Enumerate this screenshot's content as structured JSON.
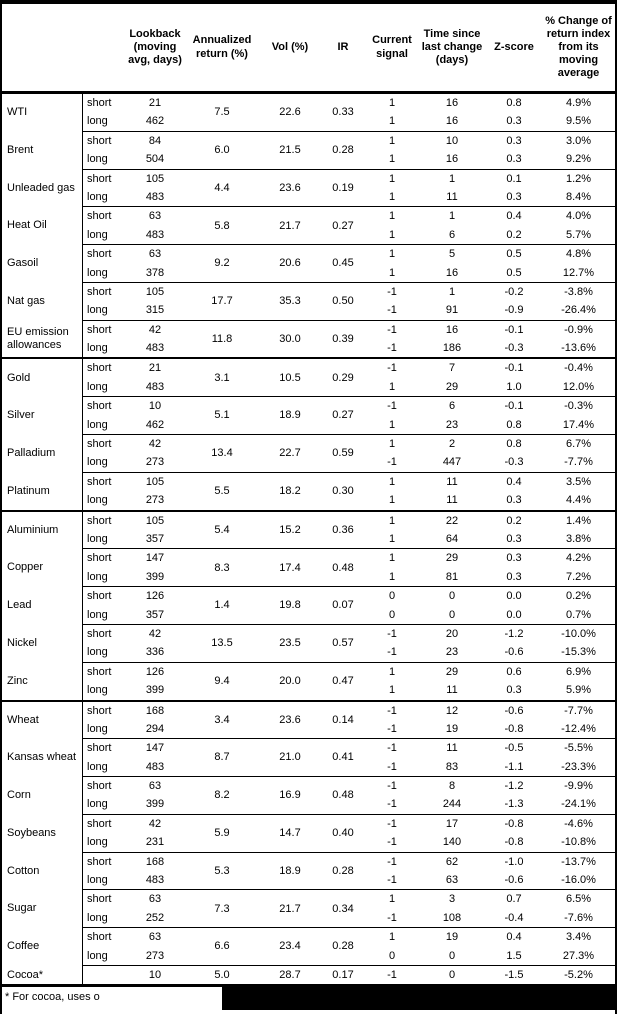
{
  "table": {
    "columns": [
      "Lookback (moving avg, days)",
      "Annualized return (%)",
      "Vol (%)",
      "IR",
      "Current signal",
      "Time since last change (days)",
      "Z-score",
      "% Change of return index from its moving average"
    ],
    "sections": [
      {
        "commodities": [
          {
            "name": "WTI",
            "annualized_return": "7.5",
            "vol": "22.6",
            "ir": "0.33",
            "rows": [
              {
                "leg": "short",
                "lookback": "21",
                "signal": "1",
                "time_since": "16",
                "z_score": "0.8",
                "pct_change": "4.9%"
              },
              {
                "leg": "long",
                "lookback": "462",
                "signal": "1",
                "time_since": "16",
                "z_score": "0.3",
                "pct_change": "9.5%"
              }
            ]
          },
          {
            "name": "Brent",
            "annualized_return": "6.0",
            "vol": "21.5",
            "ir": "0.28",
            "rows": [
              {
                "leg": "short",
                "lookback": "84",
                "signal": "1",
                "time_since": "10",
                "z_score": "0.3",
                "pct_change": "3.0%"
              },
              {
                "leg": "long",
                "lookback": "504",
                "signal": "1",
                "time_since": "16",
                "z_score": "0.3",
                "pct_change": "9.2%"
              }
            ]
          },
          {
            "name": "Unleaded gas",
            "annualized_return": "4.4",
            "vol": "23.6",
            "ir": "0.19",
            "rows": [
              {
                "leg": "short",
                "lookback": "105",
                "signal": "1",
                "time_since": "1",
                "z_score": "0.1",
                "pct_change": "1.2%"
              },
              {
                "leg": "long",
                "lookback": "483",
                "signal": "1",
                "time_since": "11",
                "z_score": "0.3",
                "pct_change": "8.4%"
              }
            ]
          },
          {
            "name": "Heat Oil",
            "annualized_return": "5.8",
            "vol": "21.7",
            "ir": "0.27",
            "rows": [
              {
                "leg": "short",
                "lookback": "63",
                "signal": "1",
                "time_since": "1",
                "z_score": "0.4",
                "pct_change": "4.0%"
              },
              {
                "leg": "long",
                "lookback": "483",
                "signal": "1",
                "time_since": "6",
                "z_score": "0.2",
                "pct_change": "5.7%"
              }
            ]
          },
          {
            "name": "Gasoil",
            "annualized_return": "9.2",
            "vol": "20.6",
            "ir": "0.45",
            "rows": [
              {
                "leg": "short",
                "lookback": "63",
                "signal": "1",
                "time_since": "5",
                "z_score": "0.5",
                "pct_change": "4.8%"
              },
              {
                "leg": "long",
                "lookback": "378",
                "signal": "1",
                "time_since": "16",
                "z_score": "0.5",
                "pct_change": "12.7%"
              }
            ]
          },
          {
            "name": "Nat gas",
            "annualized_return": "17.7",
            "vol": "35.3",
            "ir": "0.50",
            "rows": [
              {
                "leg": "short",
                "lookback": "105",
                "signal": "-1",
                "time_since": "1",
                "z_score": "-0.2",
                "pct_change": "-3.8%"
              },
              {
                "leg": "long",
                "lookback": "315",
                "signal": "-1",
                "time_since": "91",
                "z_score": "-0.9",
                "pct_change": "-26.4%"
              }
            ]
          },
          {
            "name": "EU emission allowances",
            "annualized_return": "11.8",
            "vol": "30.0",
            "ir": "0.39",
            "rows": [
              {
                "leg": "short",
                "lookback": "42",
                "signal": "-1",
                "time_since": "16",
                "z_score": "-0.1",
                "pct_change": "-0.9%"
              },
              {
                "leg": "long",
                "lookback": "483",
                "signal": "-1",
                "time_since": "186",
                "z_score": "-0.3",
                "pct_change": "-13.6%"
              }
            ]
          }
        ]
      },
      {
        "commodities": [
          {
            "name": "Gold",
            "annualized_return": "3.1",
            "vol": "10.5",
            "ir": "0.29",
            "rows": [
              {
                "leg": "short",
                "lookback": "21",
                "signal": "-1",
                "time_since": "7",
                "z_score": "-0.1",
                "pct_change": "-0.4%"
              },
              {
                "leg": "long",
                "lookback": "483",
                "signal": "1",
                "time_since": "29",
                "z_score": "1.0",
                "pct_change": "12.0%"
              }
            ]
          },
          {
            "name": "Silver",
            "annualized_return": "5.1",
            "vol": "18.9",
            "ir": "0.27",
            "rows": [
              {
                "leg": "short",
                "lookback": "10",
                "signal": "-1",
                "time_since": "6",
                "z_score": "-0.1",
                "pct_change": "-0.3%"
              },
              {
                "leg": "long",
                "lookback": "462",
                "signal": "1",
                "time_since": "23",
                "z_score": "0.8",
                "pct_change": "17.4%"
              }
            ]
          },
          {
            "name": "Palladium",
            "annualized_return": "13.4",
            "vol": "22.7",
            "ir": "0.59",
            "rows": [
              {
                "leg": "short",
                "lookback": "42",
                "signal": "1",
                "time_since": "2",
                "z_score": "0.8",
                "pct_change": "6.7%"
              },
              {
                "leg": "long",
                "lookback": "273",
                "signal": "-1",
                "time_since": "447",
                "z_score": "-0.3",
                "pct_change": "-7.7%"
              }
            ]
          },
          {
            "name": "Platinum",
            "annualized_return": "5.5",
            "vol": "18.2",
            "ir": "0.30",
            "rows": [
              {
                "leg": "short",
                "lookback": "105",
                "signal": "1",
                "time_since": "11",
                "z_score": "0.4",
                "pct_change": "3.5%"
              },
              {
                "leg": "long",
                "lookback": "273",
                "signal": "1",
                "time_since": "11",
                "z_score": "0.3",
                "pct_change": "4.4%"
              }
            ]
          }
        ]
      },
      {
        "commodities": [
          {
            "name": "Aluminium",
            "annualized_return": "5.4",
            "vol": "15.2",
            "ir": "0.36",
            "rows": [
              {
                "leg": "short",
                "lookback": "105",
                "signal": "1",
                "time_since": "22",
                "z_score": "0.2",
                "pct_change": "1.4%"
              },
              {
                "leg": "long",
                "lookback": "357",
                "signal": "1",
                "time_since": "64",
                "z_score": "0.3",
                "pct_change": "3.8%"
              }
            ]
          },
          {
            "name": "Copper",
            "annualized_return": "8.3",
            "vol": "17.4",
            "ir": "0.48",
            "rows": [
              {
                "leg": "short",
                "lookback": "147",
                "signal": "1",
                "time_since": "29",
                "z_score": "0.3",
                "pct_change": "4.2%"
              },
              {
                "leg": "long",
                "lookback": "399",
                "signal": "1",
                "time_since": "81",
                "z_score": "0.3",
                "pct_change": "7.2%"
              }
            ]
          },
          {
            "name": "Lead",
            "annualized_return": "1.4",
            "vol": "19.8",
            "ir": "0.07",
            "rows": [
              {
                "leg": "short",
                "lookback": "126",
                "signal": "0",
                "time_since": "0",
                "z_score": "0.0",
                "pct_change": "0.2%"
              },
              {
                "leg": "long",
                "lookback": "357",
                "signal": "0",
                "time_since": "0",
                "z_score": "0.0",
                "pct_change": "0.7%"
              }
            ]
          },
          {
            "name": "Nickel",
            "annualized_return": "13.5",
            "vol": "23.5",
            "ir": "0.57",
            "rows": [
              {
                "leg": "short",
                "lookback": "42",
                "signal": "-1",
                "time_since": "20",
                "z_score": "-1.2",
                "pct_change": "-10.0%"
              },
              {
                "leg": "long",
                "lookback": "336",
                "signal": "-1",
                "time_since": "23",
                "z_score": "-0.6",
                "pct_change": "-15.3%"
              }
            ]
          },
          {
            "name": "Zinc",
            "annualized_return": "9.4",
            "vol": "20.0",
            "ir": "0.47",
            "rows": [
              {
                "leg": "short",
                "lookback": "126",
                "signal": "1",
                "time_since": "29",
                "z_score": "0.6",
                "pct_change": "6.9%"
              },
              {
                "leg": "long",
                "lookback": "399",
                "signal": "1",
                "time_since": "11",
                "z_score": "0.3",
                "pct_change": "5.9%"
              }
            ]
          }
        ]
      },
      {
        "commodities": [
          {
            "name": "Wheat",
            "annualized_return": "3.4",
            "vol": "23.6",
            "ir": "0.14",
            "rows": [
              {
                "leg": "short",
                "lookback": "168",
                "signal": "-1",
                "time_since": "12",
                "z_score": "-0.6",
                "pct_change": "-7.7%"
              },
              {
                "leg": "long",
                "lookback": "294",
                "signal": "-1",
                "time_since": "19",
                "z_score": "-0.8",
                "pct_change": "-12.4%"
              }
            ]
          },
          {
            "name": "Kansas wheat",
            "annualized_return": "8.7",
            "vol": "21.0",
            "ir": "0.41",
            "rows": [
              {
                "leg": "short",
                "lookback": "147",
                "signal": "-1",
                "time_since": "11",
                "z_score": "-0.5",
                "pct_change": "-5.5%"
              },
              {
                "leg": "long",
                "lookback": "483",
                "signal": "-1",
                "time_since": "83",
                "z_score": "-1.1",
                "pct_change": "-23.3%"
              }
            ]
          },
          {
            "name": "Corn",
            "annualized_return": "8.2",
            "vol": "16.9",
            "ir": "0.48",
            "rows": [
              {
                "leg": "short",
                "lookback": "63",
                "signal": "-1",
                "time_since": "8",
                "z_score": "-1.2",
                "pct_change": "-9.9%"
              },
              {
                "leg": "long",
                "lookback": "399",
                "signal": "-1",
                "time_since": "244",
                "z_score": "-1.3",
                "pct_change": "-24.1%"
              }
            ]
          },
          {
            "name": "Soybeans",
            "annualized_return": "5.9",
            "vol": "14.7",
            "ir": "0.40",
            "rows": [
              {
                "leg": "short",
                "lookback": "42",
                "signal": "-1",
                "time_since": "17",
                "z_score": "-0.8",
                "pct_change": "-4.6%"
              },
              {
                "leg": "long",
                "lookback": "231",
                "signal": "-1",
                "time_since": "140",
                "z_score": "-0.8",
                "pct_change": "-10.8%"
              }
            ]
          },
          {
            "name": "Cotton",
            "annualized_return": "5.3",
            "vol": "18.9",
            "ir": "0.28",
            "rows": [
              {
                "leg": "short",
                "lookback": "168",
                "signal": "-1",
                "time_since": "62",
                "z_score": "-1.0",
                "pct_change": "-13.7%"
              },
              {
                "leg": "long",
                "lookback": "483",
                "signal": "-1",
                "time_since": "63",
                "z_score": "-0.6",
                "pct_change": "-16.0%"
              }
            ]
          },
          {
            "name": "Sugar",
            "annualized_return": "7.3",
            "vol": "21.7",
            "ir": "0.34",
            "rows": [
              {
                "leg": "short",
                "lookback": "63",
                "signal": "1",
                "time_since": "3",
                "z_score": "0.7",
                "pct_change": "6.5%"
              },
              {
                "leg": "long",
                "lookback": "252",
                "signal": "-1",
                "time_since": "108",
                "z_score": "-0.4",
                "pct_change": "-7.6%"
              }
            ]
          },
          {
            "name": "Coffee",
            "annualized_return": "6.6",
            "vol": "23.4",
            "ir": "0.28",
            "rows": [
              {
                "leg": "short",
                "lookback": "63",
                "signal": "1",
                "time_since": "19",
                "z_score": "0.4",
                "pct_change": "3.4%"
              },
              {
                "leg": "long",
                "lookback": "273",
                "signal": "0",
                "time_since": "0",
                "z_score": "1.5",
                "pct_change": "27.3%"
              }
            ]
          },
          {
            "name": "Cocoa*",
            "annualized_return": "5.0",
            "vol": "28.7",
            "ir": "0.17",
            "rows": [
              {
                "leg": "",
                "lookback": "10",
                "signal": "-1",
                "time_since": "0",
                "z_score": "-1.5",
                "pct_change": "-5.2%"
              }
            ]
          }
        ]
      }
    ]
  },
  "footnote": {
    "text": "* For cocoa, uses o"
  },
  "colors": {
    "text": "#000000",
    "background": "#ffffff",
    "border": "#000000",
    "redaction": "#000000"
  }
}
